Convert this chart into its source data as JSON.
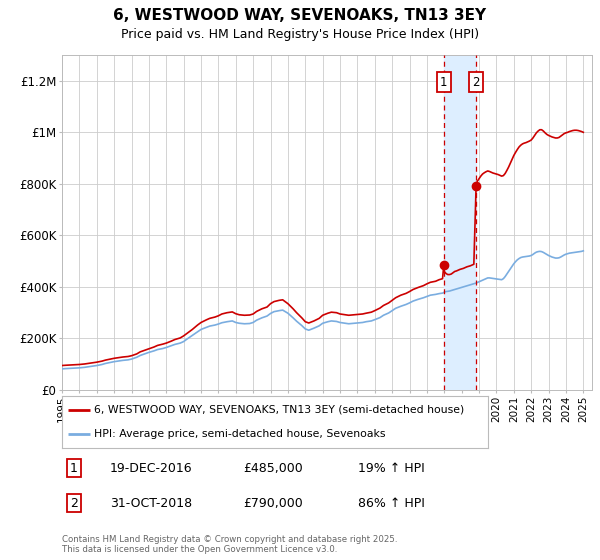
{
  "title": "6, WESTWOOD WAY, SEVENOAKS, TN13 3EY",
  "subtitle": "Price paid vs. HM Land Registry's House Price Index (HPI)",
  "ylabel_ticks": [
    "£0",
    "£200K",
    "£400K",
    "£600K",
    "£800K",
    "£1M",
    "£1.2M"
  ],
  "ytick_values": [
    0,
    200000,
    400000,
    600000,
    800000,
    1000000,
    1200000
  ],
  "ylim": [
    0,
    1300000
  ],
  "xlim_start": 1995,
  "xlim_end": 2025.5,
  "red_line_color": "#cc0000",
  "blue_line_color": "#7aade0",
  "marker1_date": 2016.97,
  "marker2_date": 2018.83,
  "marker1_price": 485000,
  "marker2_price": 790000,
  "vline1_x": 2016.97,
  "vline2_x": 2018.83,
  "legend_label_red": "6, WESTWOOD WAY, SEVENOAKS, TN13 3EY (semi-detached house)",
  "legend_label_blue": "HPI: Average price, semi-detached house, Sevenoaks",
  "annotation1_date": "19-DEC-2016",
  "annotation1_price": "£485,000",
  "annotation1_hpi": "19% ↑ HPI",
  "annotation2_date": "31-OCT-2018",
  "annotation2_price": "£790,000",
  "annotation2_hpi": "86% ↑ HPI",
  "footer": "Contains HM Land Registry data © Crown copyright and database right 2025.\nThis data is licensed under the Open Government Licence v3.0.",
  "background_color": "#ffffff",
  "grid_color": "#cccccc",
  "shaded_region_color": "#ddeeff",
  "hpi_red_data": [
    [
      1995.0,
      95000
    ],
    [
      1995.2,
      96000
    ],
    [
      1995.5,
      97000
    ],
    [
      1995.8,
      98000
    ],
    [
      1996.0,
      99000
    ],
    [
      1996.3,
      101000
    ],
    [
      1996.5,
      103000
    ],
    [
      1996.8,
      106000
    ],
    [
      1997.0,
      108000
    ],
    [
      1997.3,
      112000
    ],
    [
      1997.5,
      116000
    ],
    [
      1997.8,
      120000
    ],
    [
      1998.0,
      123000
    ],
    [
      1998.3,
      126000
    ],
    [
      1998.5,
      128000
    ],
    [
      1998.8,
      130000
    ],
    [
      1999.0,
      133000
    ],
    [
      1999.3,
      140000
    ],
    [
      1999.5,
      148000
    ],
    [
      1999.8,
      155000
    ],
    [
      2000.0,
      160000
    ],
    [
      2000.3,
      167000
    ],
    [
      2000.5,
      173000
    ],
    [
      2000.8,
      178000
    ],
    [
      2001.0,
      182000
    ],
    [
      2001.3,
      190000
    ],
    [
      2001.5,
      196000
    ],
    [
      2001.8,
      202000
    ],
    [
      2002.0,
      210000
    ],
    [
      2002.2,
      220000
    ],
    [
      2002.5,
      235000
    ],
    [
      2002.8,
      252000
    ],
    [
      2003.0,
      262000
    ],
    [
      2003.3,
      272000
    ],
    [
      2003.5,
      278000
    ],
    [
      2003.8,
      283000
    ],
    [
      2004.0,
      288000
    ],
    [
      2004.2,
      295000
    ],
    [
      2004.5,
      300000
    ],
    [
      2004.8,
      303000
    ],
    [
      2005.0,
      296000
    ],
    [
      2005.2,
      292000
    ],
    [
      2005.5,
      290000
    ],
    [
      2005.8,
      291000
    ],
    [
      2006.0,
      295000
    ],
    [
      2006.2,
      305000
    ],
    [
      2006.5,
      315000
    ],
    [
      2006.8,
      322000
    ],
    [
      2007.0,
      335000
    ],
    [
      2007.2,
      343000
    ],
    [
      2007.5,
      348000
    ],
    [
      2007.7,
      350000
    ],
    [
      2007.8,
      345000
    ],
    [
      2008.0,
      335000
    ],
    [
      2008.3,
      315000
    ],
    [
      2008.5,
      300000
    ],
    [
      2008.8,
      280000
    ],
    [
      2009.0,
      265000
    ],
    [
      2009.2,
      260000
    ],
    [
      2009.5,
      268000
    ],
    [
      2009.8,
      278000
    ],
    [
      2010.0,
      290000
    ],
    [
      2010.3,
      298000
    ],
    [
      2010.5,
      302000
    ],
    [
      2010.8,
      300000
    ],
    [
      2011.0,
      295000
    ],
    [
      2011.3,
      292000
    ],
    [
      2011.5,
      290000
    ],
    [
      2011.8,
      292000
    ],
    [
      2012.0,
      293000
    ],
    [
      2012.3,
      295000
    ],
    [
      2012.5,
      298000
    ],
    [
      2012.8,
      302000
    ],
    [
      2013.0,
      308000
    ],
    [
      2013.3,
      318000
    ],
    [
      2013.5,
      328000
    ],
    [
      2013.8,
      338000
    ],
    [
      2014.0,
      348000
    ],
    [
      2014.2,
      358000
    ],
    [
      2014.5,
      368000
    ],
    [
      2014.8,
      375000
    ],
    [
      2015.0,
      382000
    ],
    [
      2015.2,
      390000
    ],
    [
      2015.5,
      398000
    ],
    [
      2015.8,
      405000
    ],
    [
      2016.0,
      412000
    ],
    [
      2016.2,
      418000
    ],
    [
      2016.5,
      422000
    ],
    [
      2016.7,
      428000
    ],
    [
      2016.9,
      432000
    ],
    [
      2016.97,
      485000
    ],
    [
      2017.0,
      460000
    ],
    [
      2017.1,
      452000
    ],
    [
      2017.2,
      448000
    ],
    [
      2017.3,
      448000
    ],
    [
      2017.4,
      450000
    ],
    [
      2017.5,
      455000
    ],
    [
      2017.6,
      460000
    ],
    [
      2017.7,
      462000
    ],
    [
      2017.8,
      465000
    ],
    [
      2017.9,
      468000
    ],
    [
      2018.0,
      470000
    ],
    [
      2018.1,
      472000
    ],
    [
      2018.2,
      475000
    ],
    [
      2018.3,
      478000
    ],
    [
      2018.4,
      480000
    ],
    [
      2018.5,
      482000
    ],
    [
      2018.6,
      485000
    ],
    [
      2018.7,
      488000
    ],
    [
      2018.83,
      790000
    ],
    [
      2018.9,
      810000
    ],
    [
      2019.0,
      820000
    ],
    [
      2019.1,
      830000
    ],
    [
      2019.2,
      838000
    ],
    [
      2019.3,
      843000
    ],
    [
      2019.4,
      847000
    ],
    [
      2019.5,
      850000
    ],
    [
      2019.6,
      848000
    ],
    [
      2019.7,
      845000
    ],
    [
      2019.8,
      842000
    ],
    [
      2019.9,
      840000
    ],
    [
      2020.0,
      838000
    ],
    [
      2020.1,
      836000
    ],
    [
      2020.2,
      833000
    ],
    [
      2020.3,
      830000
    ],
    [
      2020.4,
      832000
    ],
    [
      2020.5,
      840000
    ],
    [
      2020.6,
      852000
    ],
    [
      2020.7,
      865000
    ],
    [
      2020.8,
      880000
    ],
    [
      2020.9,
      895000
    ],
    [
      2021.0,
      910000
    ],
    [
      2021.1,
      922000
    ],
    [
      2021.2,
      933000
    ],
    [
      2021.3,
      943000
    ],
    [
      2021.4,
      950000
    ],
    [
      2021.5,
      955000
    ],
    [
      2021.6,
      958000
    ],
    [
      2021.7,
      960000
    ],
    [
      2021.8,
      963000
    ],
    [
      2021.9,
      966000
    ],
    [
      2022.0,
      970000
    ],
    [
      2022.1,
      978000
    ],
    [
      2022.2,
      988000
    ],
    [
      2022.3,
      998000
    ],
    [
      2022.4,
      1005000
    ],
    [
      2022.5,
      1010000
    ],
    [
      2022.6,
      1010000
    ],
    [
      2022.7,
      1005000
    ],
    [
      2022.8,
      998000
    ],
    [
      2022.9,
      992000
    ],
    [
      2023.0,
      988000
    ],
    [
      2023.1,
      985000
    ],
    [
      2023.2,
      982000
    ],
    [
      2023.3,
      980000
    ],
    [
      2023.4,
      978000
    ],
    [
      2023.5,
      978000
    ],
    [
      2023.6,
      980000
    ],
    [
      2023.7,
      985000
    ],
    [
      2023.8,
      990000
    ],
    [
      2023.9,
      995000
    ],
    [
      2024.0,
      998000
    ],
    [
      2024.1,
      1000000
    ],
    [
      2024.2,
      1003000
    ],
    [
      2024.3,
      1005000
    ],
    [
      2024.4,
      1007000
    ],
    [
      2024.5,
      1008000
    ],
    [
      2024.6,
      1008000
    ],
    [
      2024.7,
      1007000
    ],
    [
      2024.8,
      1005000
    ],
    [
      2024.9,
      1003000
    ],
    [
      2025.0,
      1000000
    ]
  ],
  "hpi_blue_data": [
    [
      1995.0,
      82000
    ],
    [
      1995.2,
      83000
    ],
    [
      1995.5,
      84000
    ],
    [
      1995.8,
      85000
    ],
    [
      1996.0,
      86000
    ],
    [
      1996.3,
      88000
    ],
    [
      1996.5,
      90000
    ],
    [
      1996.8,
      93000
    ],
    [
      1997.0,
      95000
    ],
    [
      1997.3,
      99000
    ],
    [
      1997.5,
      103000
    ],
    [
      1997.8,
      107000
    ],
    [
      1998.0,
      110000
    ],
    [
      1998.3,
      113000
    ],
    [
      1998.5,
      115000
    ],
    [
      1998.8,
      117000
    ],
    [
      1999.0,
      120000
    ],
    [
      1999.3,
      127000
    ],
    [
      1999.5,
      134000
    ],
    [
      1999.8,
      141000
    ],
    [
      2000.0,
      146000
    ],
    [
      2000.3,
      152000
    ],
    [
      2000.5,
      157000
    ],
    [
      2000.8,
      161000
    ],
    [
      2001.0,
      165000
    ],
    [
      2001.3,
      172000
    ],
    [
      2001.5,
      177000
    ],
    [
      2001.8,
      182000
    ],
    [
      2002.0,
      188000
    ],
    [
      2002.2,
      198000
    ],
    [
      2002.5,
      212000
    ],
    [
      2002.8,
      226000
    ],
    [
      2003.0,
      235000
    ],
    [
      2003.3,
      243000
    ],
    [
      2003.5,
      248000
    ],
    [
      2003.8,
      252000
    ],
    [
      2004.0,
      256000
    ],
    [
      2004.2,
      261000
    ],
    [
      2004.5,
      265000
    ],
    [
      2004.8,
      268000
    ],
    [
      2005.0,
      262000
    ],
    [
      2005.2,
      259000
    ],
    [
      2005.5,
      257000
    ],
    [
      2005.8,
      258000
    ],
    [
      2006.0,
      262000
    ],
    [
      2006.2,
      271000
    ],
    [
      2006.5,
      280000
    ],
    [
      2006.8,
      287000
    ],
    [
      2007.0,
      297000
    ],
    [
      2007.2,
      304000
    ],
    [
      2007.5,
      308000
    ],
    [
      2007.7,
      310000
    ],
    [
      2007.8,
      306000
    ],
    [
      2008.0,
      298000
    ],
    [
      2008.3,
      280000
    ],
    [
      2008.5,
      267000
    ],
    [
      2008.8,
      250000
    ],
    [
      2009.0,
      237000
    ],
    [
      2009.2,
      232000
    ],
    [
      2009.5,
      240000
    ],
    [
      2009.8,
      249000
    ],
    [
      2010.0,
      259000
    ],
    [
      2010.3,
      265000
    ],
    [
      2010.5,
      268000
    ],
    [
      2010.8,
      266000
    ],
    [
      2011.0,
      262000
    ],
    [
      2011.3,
      259000
    ],
    [
      2011.5,
      257000
    ],
    [
      2011.8,
      259000
    ],
    [
      2012.0,
      260000
    ],
    [
      2012.3,
      262000
    ],
    [
      2012.5,
      265000
    ],
    [
      2012.8,
      268000
    ],
    [
      2013.0,
      273000
    ],
    [
      2013.3,
      281000
    ],
    [
      2013.5,
      290000
    ],
    [
      2013.8,
      299000
    ],
    [
      2014.0,
      308000
    ],
    [
      2014.2,
      317000
    ],
    [
      2014.5,
      325000
    ],
    [
      2014.8,
      332000
    ],
    [
      2015.0,
      338000
    ],
    [
      2015.2,
      345000
    ],
    [
      2015.5,
      352000
    ],
    [
      2015.8,
      358000
    ],
    [
      2016.0,
      363000
    ],
    [
      2016.2,
      368000
    ],
    [
      2016.5,
      371000
    ],
    [
      2016.7,
      374000
    ],
    [
      2016.9,
      376000
    ],
    [
      2016.97,
      378000
    ],
    [
      2017.0,
      380000
    ],
    [
      2017.1,
      382000
    ],
    [
      2017.2,
      383000
    ],
    [
      2017.3,
      384000
    ],
    [
      2017.4,
      386000
    ],
    [
      2017.5,
      388000
    ],
    [
      2017.6,
      390000
    ],
    [
      2017.7,
      392000
    ],
    [
      2017.8,
      394000
    ],
    [
      2017.9,
      396000
    ],
    [
      2018.0,
      398000
    ],
    [
      2018.1,
      400000
    ],
    [
      2018.2,
      402000
    ],
    [
      2018.3,
      404000
    ],
    [
      2018.4,
      406000
    ],
    [
      2018.5,
      408000
    ],
    [
      2018.6,
      410000
    ],
    [
      2018.7,
      412000
    ],
    [
      2018.83,
      415000
    ],
    [
      2018.9,
      417000
    ],
    [
      2019.0,
      420000
    ],
    [
      2019.1,
      423000
    ],
    [
      2019.2,
      426000
    ],
    [
      2019.3,
      429000
    ],
    [
      2019.4,
      432000
    ],
    [
      2019.5,
      435000
    ],
    [
      2019.6,
      435000
    ],
    [
      2019.7,
      434000
    ],
    [
      2019.8,
      433000
    ],
    [
      2019.9,
      432000
    ],
    [
      2020.0,
      431000
    ],
    [
      2020.1,
      430000
    ],
    [
      2020.2,
      429000
    ],
    [
      2020.3,
      428000
    ],
    [
      2020.4,
      432000
    ],
    [
      2020.5,
      440000
    ],
    [
      2020.6,
      450000
    ],
    [
      2020.7,
      460000
    ],
    [
      2020.8,
      470000
    ],
    [
      2020.9,
      480000
    ],
    [
      2021.0,
      490000
    ],
    [
      2021.1,
      498000
    ],
    [
      2021.2,
      505000
    ],
    [
      2021.3,
      510000
    ],
    [
      2021.4,
      514000
    ],
    [
      2021.5,
      516000
    ],
    [
      2021.6,
      517000
    ],
    [
      2021.7,
      518000
    ],
    [
      2021.8,
      519000
    ],
    [
      2021.9,
      520000
    ],
    [
      2022.0,
      522000
    ],
    [
      2022.1,
      526000
    ],
    [
      2022.2,
      531000
    ],
    [
      2022.3,
      535000
    ],
    [
      2022.4,
      537000
    ],
    [
      2022.5,
      538000
    ],
    [
      2022.6,
      537000
    ],
    [
      2022.7,
      534000
    ],
    [
      2022.8,
      530000
    ],
    [
      2022.9,
      526000
    ],
    [
      2023.0,
      522000
    ],
    [
      2023.1,
      519000
    ],
    [
      2023.2,
      516000
    ],
    [
      2023.3,
      514000
    ],
    [
      2023.4,
      512000
    ],
    [
      2023.5,
      512000
    ],
    [
      2023.6,
      513000
    ],
    [
      2023.7,
      516000
    ],
    [
      2023.8,
      520000
    ],
    [
      2023.9,
      524000
    ],
    [
      2024.0,
      527000
    ],
    [
      2024.1,
      529000
    ],
    [
      2024.2,
      531000
    ],
    [
      2024.3,
      532000
    ],
    [
      2024.4,
      533000
    ],
    [
      2024.5,
      534000
    ],
    [
      2024.6,
      535000
    ],
    [
      2024.7,
      536000
    ],
    [
      2024.8,
      537000
    ],
    [
      2024.9,
      538000
    ],
    [
      2025.0,
      540000
    ]
  ]
}
